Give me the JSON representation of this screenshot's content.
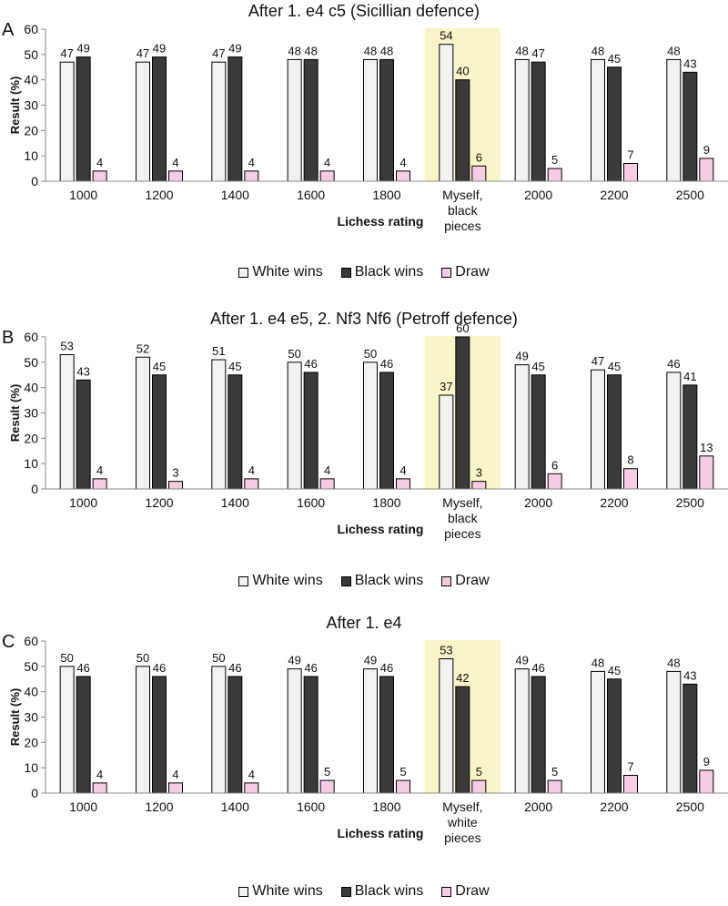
{
  "legend": {
    "white": "White wins",
    "black": "Black wins",
    "draw": "Draw"
  },
  "colors": {
    "white": "#f2f2f2",
    "black": "#3a3a3a",
    "draw": "#f6cce2",
    "highlight": "#f8f6c8"
  },
  "chart_data": [
    {
      "type": "bar",
      "letter": "A",
      "title": "After 1. e4 c5 (Sicillian defence)",
      "xlabel": "Lichess rating",
      "ylabel": "Result (%)",
      "ylim": [
        0,
        60
      ],
      "yticks": [
        0,
        10,
        20,
        30,
        40,
        50,
        60
      ],
      "highlight_category": "Myself, black pieces",
      "categories": [
        "1000",
        "1200",
        "1400",
        "1600",
        "1800",
        "Myself, black pieces",
        "2000",
        "2200",
        "2500"
      ],
      "series": [
        {
          "name": "White wins",
          "values": [
            47,
            47,
            47,
            48,
            48,
            54,
            48,
            48,
            48
          ]
        },
        {
          "name": "Black wins",
          "values": [
            49,
            49,
            49,
            48,
            48,
            40,
            47,
            45,
            43
          ]
        },
        {
          "name": "Draw",
          "values": [
            4,
            4,
            4,
            4,
            4,
            6,
            5,
            7,
            9
          ]
        }
      ]
    },
    {
      "type": "bar",
      "letter": "B",
      "title": "After 1. e4 e5, 2. Nf3 Nf6 (Petroff defence)",
      "xlabel": "Lichess rating",
      "ylabel": "Result (%)",
      "ylim": [
        0,
        60
      ],
      "yticks": [
        0,
        10,
        20,
        30,
        40,
        50,
        60
      ],
      "highlight_category": "Myself, black pieces",
      "categories": [
        "1000",
        "1200",
        "1400",
        "1600",
        "1800",
        "Myself, black pieces",
        "2000",
        "2200",
        "2500"
      ],
      "series": [
        {
          "name": "White wins",
          "values": [
            53,
            52,
            51,
            50,
            50,
            37,
            49,
            47,
            46
          ]
        },
        {
          "name": "Black wins",
          "values": [
            43,
            45,
            45,
            46,
            46,
            60,
            45,
            45,
            41
          ]
        },
        {
          "name": "Draw",
          "values": [
            4,
            3,
            4,
            4,
            4,
            3,
            6,
            8,
            13
          ]
        }
      ]
    },
    {
      "type": "bar",
      "letter": "C",
      "title": "After 1. e4",
      "xlabel": "Lichess rating",
      "ylabel": "Result (%)",
      "ylim": [
        0,
        60
      ],
      "yticks": [
        0,
        10,
        20,
        30,
        40,
        50,
        60
      ],
      "highlight_category": "Myself, white pieces",
      "categories": [
        "1000",
        "1200",
        "1400",
        "1600",
        "1800",
        "Myself, white pieces",
        "2000",
        "2200",
        "2500"
      ],
      "series": [
        {
          "name": "White wins",
          "values": [
            50,
            50,
            50,
            49,
            49,
            53,
            49,
            48,
            48
          ]
        },
        {
          "name": "Black wins",
          "values": [
            46,
            46,
            46,
            46,
            46,
            42,
            46,
            45,
            43
          ]
        },
        {
          "name": "Draw",
          "values": [
            4,
            4,
            4,
            5,
            5,
            5,
            5,
            7,
            9
          ]
        }
      ]
    }
  ]
}
